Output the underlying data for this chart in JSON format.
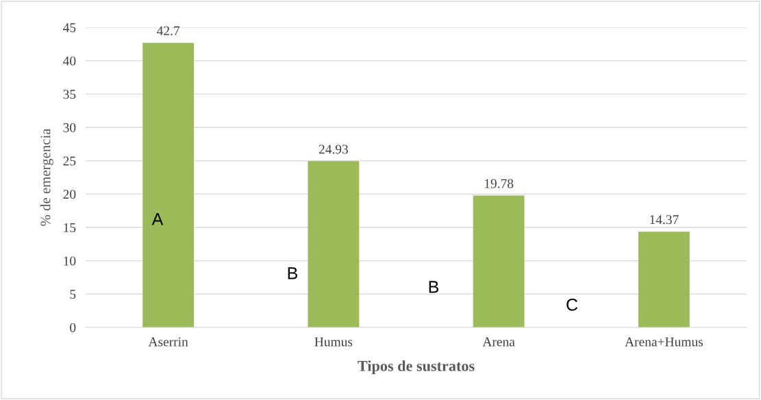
{
  "chart_data": {
    "type": "bar",
    "xlabel": "Tipos de sustratos",
    "ylabel": "% de emergencia",
    "categories": [
      "Aserrin",
      "Humus",
      "Arena",
      "Arena+Humus"
    ],
    "values": [
      42.7,
      24.93,
      19.78,
      14.37
    ],
    "color": "#9bbb59",
    "ylim": [
      0,
      45
    ],
    "yticks": [
      0,
      5,
      10,
      15,
      20,
      25,
      30,
      35,
      40,
      45
    ],
    "grid": "y",
    "data_labels": true,
    "annotations": [
      "A",
      "B",
      "B",
      "C"
    ]
  }
}
